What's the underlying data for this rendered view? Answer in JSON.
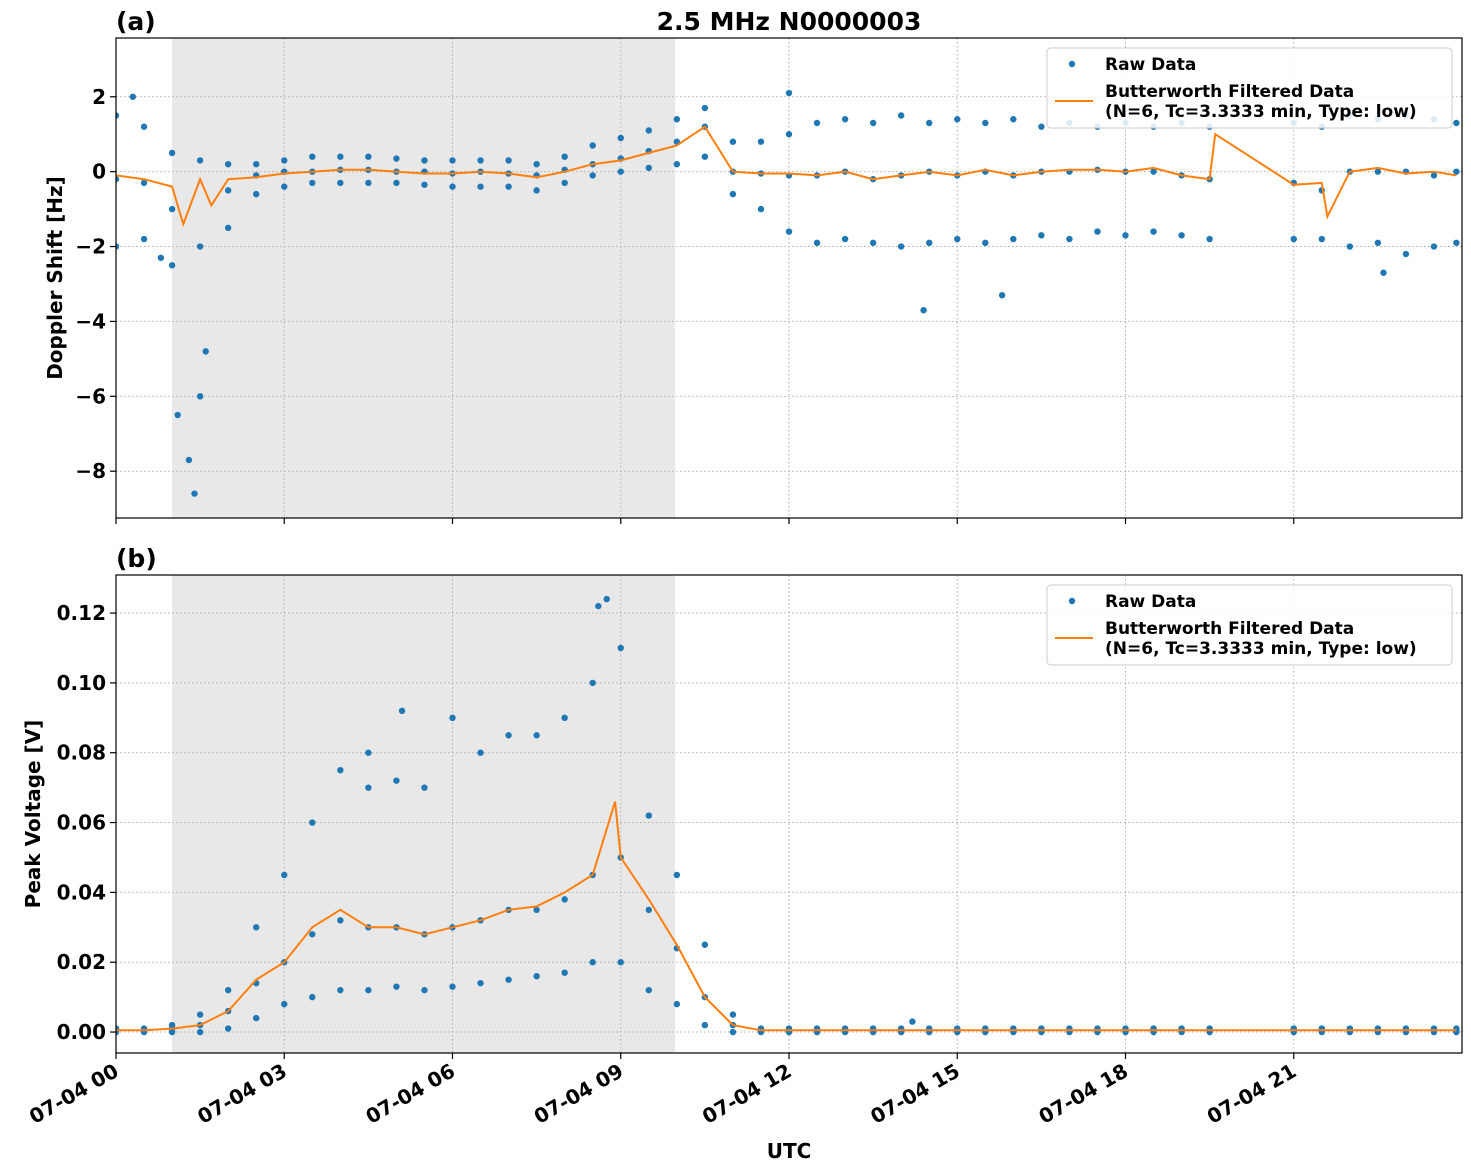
{
  "chart_data": [
    {
      "type": "combo",
      "panel_label": "(a)",
      "title": "2.5 MHz N0000003",
      "ylabel": "Doppler Shift [Hz]",
      "xlim": [
        0,
        24
      ],
      "xticks": [
        0,
        3,
        6,
        9,
        12,
        15,
        18,
        21
      ],
      "ylim": [
        -9.25,
        3.57
      ],
      "yticks": [
        {
          "value": -8,
          "label": "−8"
        },
        {
          "value": -6,
          "label": "−6"
        },
        {
          "value": -4,
          "label": "−4"
        },
        {
          "value": -2,
          "label": "−2"
        },
        0,
        2
      ],
      "grid": true,
      "legend": "upper right",
      "highlight_xrange": [
        1.0,
        9.97
      ],
      "highlight_color": "#e8e8e8",
      "series": [
        {
          "name": "Raw Data",
          "type": "scatter",
          "color": "#1f77b4",
          "x": [
            0,
            0,
            0,
            0.5,
            0.5,
            0.5,
            1,
            1,
            1,
            1.5,
            1.5,
            1.5,
            2,
            2,
            2,
            2.5,
            2.5,
            2.5,
            3,
            3,
            3,
            3.5,
            3.5,
            3.5,
            4,
            4,
            4,
            4.5,
            4.5,
            4.5,
            5,
            5,
            5,
            5.5,
            5.5,
            5.5,
            6,
            6,
            6,
            6.5,
            6.5,
            6.5,
            7,
            7,
            7,
            7.5,
            7.5,
            7.5,
            8,
            8,
            8,
            8.5,
            8.5,
            8.5,
            9,
            9,
            9,
            9.5,
            9.5,
            9.5,
            10,
            10,
            10,
            10.5,
            10.5,
            10.5,
            11,
            11,
            11,
            11.5,
            11.5,
            11.5,
            12,
            12,
            12,
            12.5,
            12.5,
            12.5,
            13,
            13,
            13,
            13.5,
            13.5,
            13.5,
            14,
            14,
            14,
            14.5,
            14.5,
            14.5,
            15,
            15,
            15,
            15.5,
            15.5,
            15.5,
            16,
            16,
            16,
            16.5,
            16.5,
            16.5,
            17,
            17,
            17,
            17.5,
            17.5,
            17.5,
            18,
            18,
            18,
            18.5,
            18.5,
            18.5,
            19,
            19,
            19,
            19.5,
            19.5,
            19.5,
            21,
            21,
            21,
            21.5,
            21.5,
            21.5,
            22,
            22,
            22,
            22.5,
            22.5,
            22.5,
            23,
            23,
            23,
            23.5,
            23.5,
            23.5,
            23.9,
            23.9,
            23.9,
            1.1,
            1.3,
            1.4,
            1.6,
            0.8,
            14.4,
            15.8,
            22.6,
            12.0,
            0.3
          ],
          "values": [
            1.5,
            -0.2,
            -2.0,
            1.2,
            -0.3,
            -1.8,
            0.5,
            -1.0,
            -2.5,
            0.3,
            -2.0,
            -6.0,
            0.2,
            -0.5,
            -1.5,
            0.2,
            -0.1,
            -0.6,
            0.3,
            0,
            -0.4,
            0.4,
            0,
            -0.3,
            0.4,
            0.05,
            -0.3,
            0.4,
            0.05,
            -0.3,
            0.35,
            0,
            -0.3,
            0.3,
            0,
            -0.35,
            0.3,
            -0.05,
            -0.4,
            0.3,
            0,
            -0.4,
            0.3,
            -0.05,
            -0.4,
            0.2,
            -0.1,
            -0.5,
            0.4,
            0.05,
            -0.3,
            0.7,
            0.2,
            -0.1,
            0.9,
            0.35,
            0,
            1.1,
            0.55,
            0.1,
            1.4,
            0.8,
            0.2,
            1.7,
            1.2,
            0.4,
            0.8,
            0,
            -0.6,
            0.8,
            -0.05,
            -1.0,
            1.0,
            -0.1,
            -1.6,
            1.3,
            -0.1,
            -1.9,
            1.4,
            0,
            -1.8,
            1.3,
            -0.2,
            -1.9,
            1.5,
            -0.1,
            -2.0,
            1.3,
            0,
            -1.9,
            1.4,
            -0.1,
            -1.8,
            1.3,
            0,
            -1.9,
            1.4,
            -0.1,
            -1.8,
            1.2,
            0,
            -1.7,
            1.3,
            0,
            -1.8,
            1.2,
            0.05,
            -1.6,
            1.3,
            0,
            -1.7,
            1.2,
            0,
            -1.6,
            1.3,
            -0.1,
            -1.7,
            1.2,
            -0.2,
            -1.8,
            1.3,
            -0.3,
            -1.8,
            1.2,
            -0.5,
            -1.8,
            1.5,
            0,
            -2.0,
            1.4,
            0,
            -1.9,
            1.5,
            0,
            -2.2,
            1.4,
            -0.1,
            -2.0,
            1.3,
            0,
            -1.9,
            -6.5,
            -7.7,
            -8.6,
            -4.8,
            -2.3,
            -3.7,
            -3.3,
            -2.7,
            2.1,
            2.0
          ]
        },
        {
          "name": "Butterworth Filtered Data\n(N=6, Tc=3.3333 min, Type: low)",
          "type": "line",
          "color": "#ff7f0e",
          "x": [
            0,
            0.5,
            1,
            1.2,
            1.5,
            1.7,
            2,
            2.5,
            3,
            3.5,
            4,
            4.5,
            5,
            5.5,
            6,
            6.5,
            7,
            7.5,
            8,
            8.5,
            9,
            9.5,
            10,
            10.5,
            11,
            11.5,
            12,
            12.5,
            13,
            13.5,
            14,
            14.5,
            15,
            15.5,
            16,
            16.5,
            17,
            17.5,
            18,
            18.5,
            19,
            19.5,
            19.6,
            21,
            21.5,
            21.6,
            22,
            22.5,
            23,
            23.5,
            23.9
          ],
          "values": [
            -0.1,
            -0.2,
            -0.4,
            -1.4,
            -0.2,
            -0.9,
            -0.2,
            -0.15,
            -0.05,
            0,
            0.05,
            0.05,
            0,
            -0.05,
            -0.05,
            0,
            -0.05,
            -0.15,
            0,
            0.2,
            0.3,
            0.5,
            0.7,
            1.2,
            0,
            -0.05,
            -0.05,
            -0.1,
            0,
            -0.2,
            -0.1,
            0,
            -0.1,
            0.05,
            -0.1,
            0,
            0.05,
            0.05,
            0,
            0.1,
            -0.1,
            -0.2,
            1.0,
            -0.35,
            -0.3,
            -1.2,
            0,
            0.1,
            -0.05,
            0,
            -0.1
          ]
        }
      ]
    },
    {
      "type": "combo",
      "panel_label": "(b)",
      "ylabel": "Peak Voltage [V]",
      "xlabel": "UTC",
      "xlim": [
        0,
        24
      ],
      "xticks": [
        {
          "value": 0,
          "label": "07-04 00"
        },
        {
          "value": 3,
          "label": "07-04 03"
        },
        {
          "value": 6,
          "label": "07-04 06"
        },
        {
          "value": 9,
          "label": "07-04 09"
        },
        {
          "value": 12,
          "label": "07-04 12"
        },
        {
          "value": 15,
          "label": "07-04 15"
        },
        {
          "value": 18,
          "label": "07-04 18"
        },
        {
          "value": 21,
          "label": "07-04 21"
        }
      ],
      "ylim": [
        -0.006,
        0.1309
      ],
      "yticks": [
        {
          "value": 0,
          "label": "0.00"
        },
        {
          "value": 0.02,
          "label": "0.02"
        },
        {
          "value": 0.04,
          "label": "0.04"
        },
        {
          "value": 0.06,
          "label": "0.06"
        },
        {
          "value": 0.08,
          "label": "0.08"
        },
        {
          "value": 0.1,
          "label": "0.10"
        },
        {
          "value": 0.12,
          "label": "0.12"
        }
      ],
      "grid": true,
      "legend": "upper right",
      "highlight_xrange": [
        1.0,
        9.97
      ],
      "highlight_color": "#e8e8e8",
      "series": [
        {
          "name": "Raw Data",
          "type": "scatter",
          "color": "#1f77b4",
          "x": [
            0,
            0,
            0,
            0.5,
            0.5,
            0.5,
            1,
            1,
            1,
            1.5,
            1.5,
            1.5,
            2,
            2,
            2,
            2.5,
            2.5,
            2.5,
            3,
            3,
            3,
            3.5,
            3.5,
            3.5,
            4,
            4,
            4,
            4.5,
            4.5,
            4.5,
            5,
            5,
            5,
            5.5,
            5.5,
            5.5,
            6,
            6,
            6,
            6.5,
            6.5,
            6.5,
            7,
            7,
            7,
            7.5,
            7.5,
            7.5,
            8,
            8,
            8,
            8.5,
            8.5,
            8.5,
            9,
            9,
            9,
            9.5,
            9.5,
            9.5,
            10,
            10,
            10,
            10.5,
            10.5,
            10.5,
            11,
            11,
            11,
            11.5,
            11.5,
            11.5,
            12,
            12,
            12,
            12.5,
            12.5,
            12.5,
            13,
            13,
            13,
            13.5,
            13.5,
            13.5,
            14,
            14,
            14,
            14.5,
            14.5,
            14.5,
            15,
            15,
            15,
            15.5,
            15.5,
            15.5,
            16,
            16,
            16,
            16.5,
            16.5,
            16.5,
            17,
            17,
            17,
            17.5,
            17.5,
            17.5,
            18,
            18,
            18,
            18.5,
            18.5,
            18.5,
            19,
            19,
            19,
            19.5,
            19.5,
            19.5,
            21,
            21,
            21,
            21.5,
            21.5,
            21.5,
            22,
            22,
            22,
            22.5,
            22.5,
            22.5,
            23,
            23,
            23,
            23.5,
            23.5,
            23.5,
            23.9,
            23.9,
            23.9,
            8.75,
            8.6,
            5.1,
            4.5,
            14.2
          ],
          "values": [
            0.001,
            0.0005,
            0,
            0.001,
            0.0005,
            0,
            0.002,
            0.001,
            0,
            0.005,
            0.002,
            0,
            0.012,
            0.006,
            0.001,
            0.03,
            0.014,
            0.004,
            0.045,
            0.02,
            0.008,
            0.06,
            0.028,
            0.01,
            0.075,
            0.032,
            0.012,
            0.07,
            0.03,
            0.012,
            0.072,
            0.03,
            0.013,
            0.07,
            0.028,
            0.012,
            0.09,
            0.03,
            0.013,
            0.08,
            0.032,
            0.014,
            0.085,
            0.035,
            0.015,
            0.085,
            0.035,
            0.016,
            0.09,
            0.038,
            0.017,
            0.1,
            0.045,
            0.02,
            0.11,
            0.05,
            0.02,
            0.062,
            0.035,
            0.012,
            0.045,
            0.024,
            0.008,
            0.025,
            0.01,
            0.002,
            0.005,
            0.002,
            0,
            0.001,
            0.0005,
            0,
            0.001,
            0.0005,
            0,
            0.001,
            0.0005,
            0,
            0.001,
            0.0005,
            0,
            0.001,
            0.0005,
            0,
            0.001,
            0.0005,
            0,
            0.001,
            0.0005,
            0,
            0.001,
            0.0005,
            0,
            0.001,
            0.0005,
            0,
            0.001,
            0.0005,
            0,
            0.001,
            0.0005,
            0,
            0.001,
            0.0005,
            0,
            0.001,
            0.0005,
            0,
            0.001,
            0.0005,
            0,
            0.001,
            0.0005,
            0,
            0.001,
            0.0005,
            0,
            0.001,
            0.0005,
            0,
            0.001,
            0.0005,
            0,
            0.001,
            0.0005,
            0,
            0.001,
            0.0005,
            0,
            0.001,
            0.0005,
            0,
            0.001,
            0.0005,
            0,
            0.001,
            0.0005,
            0,
            0.001,
            0.0005,
            0,
            0.124,
            0.122,
            0.092,
            0.08,
            0.003
          ]
        },
        {
          "name": "Butterworth Filtered Data\n(N=6, Tc=3.3333 min, Type: low)",
          "type": "line",
          "color": "#ff7f0e",
          "x": [
            0,
            0.5,
            1,
            1.5,
            2,
            2.5,
            3,
            3.5,
            4,
            4.5,
            5,
            5.5,
            6,
            6.5,
            7,
            7.5,
            8,
            8.5,
            8.9,
            9,
            9.5,
            10,
            10.5,
            11,
            11.5,
            12,
            12.5,
            13,
            13.5,
            14,
            14.5,
            15,
            15.5,
            16,
            16.5,
            17,
            17.5,
            18,
            18.5,
            19,
            19.5,
            21,
            21.5,
            22,
            22.5,
            23,
            23.5,
            23.9
          ],
          "values": [
            0.0005,
            0.0005,
            0.001,
            0.002,
            0.006,
            0.015,
            0.02,
            0.03,
            0.035,
            0.03,
            0.03,
            0.028,
            0.03,
            0.032,
            0.035,
            0.036,
            0.04,
            0.045,
            0.066,
            0.05,
            0.038,
            0.025,
            0.01,
            0.002,
            0.0005,
            0.0005,
            0.0005,
            0.0005,
            0.0005,
            0.0005,
            0.0005,
            0.0005,
            0.0005,
            0.0005,
            0.0005,
            0.0005,
            0.0005,
            0.0005,
            0.0005,
            0.0005,
            0.0005,
            0.0005,
            0.0005,
            0.0005,
            0.0005,
            0.0005,
            0.0005,
            0.0005
          ]
        }
      ]
    }
  ]
}
